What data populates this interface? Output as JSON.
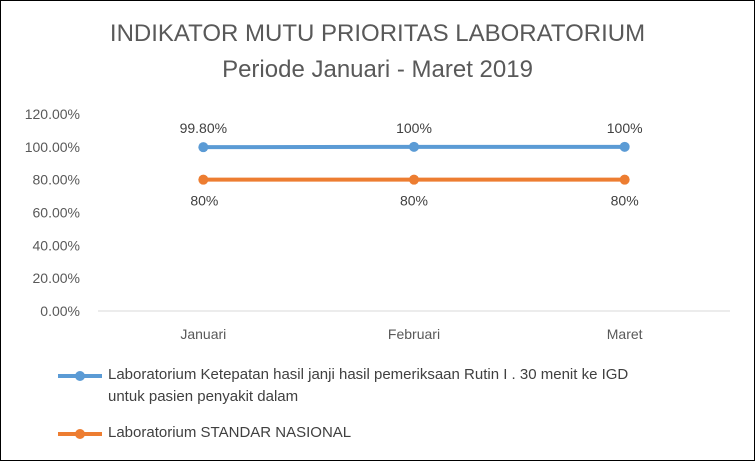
{
  "chart_data": {
    "type": "line",
    "title": "INDIKATOR MUTU PRIORITAS LABORATORIUM",
    "subtitle": "Periode Januari - Maret 2019",
    "categories": [
      "Januari",
      "Februari",
      "Maret"
    ],
    "ylim": [
      0,
      120
    ],
    "yticks": [
      "0.00%",
      "20.00%",
      "40.00%",
      "60.00%",
      "80.00%",
      "100.00%",
      "120.00%"
    ],
    "grid": "horizontal",
    "legend_position": "bottom",
    "series": [
      {
        "name": "Laboratorium Ketepatan hasil janji hasil pemeriksaan Rutin I . 30 menit ke IGD untuk pasien penyakit dalam",
        "values": [
          99.8,
          100,
          100
        ],
        "labels": [
          "99.80%",
          "100%",
          "100%"
        ],
        "color": "#5B9BD5",
        "label_position": "above"
      },
      {
        "name": "Laboratorium STANDAR NASIONAL",
        "values": [
          80,
          80,
          80
        ],
        "labels": [
          "80%",
          "80%",
          "80%"
        ],
        "color": "#ED7D31",
        "label_position": "below"
      }
    ]
  },
  "legend": {
    "series1_line1": "Laboratorium Ketepatan hasil janji hasil pemeriksaan Rutin I . 30 menit ke IGD",
    "series1_line2": "untuk pasien penyakit dalam",
    "series2": "Laboratorium STANDAR NASIONAL"
  }
}
